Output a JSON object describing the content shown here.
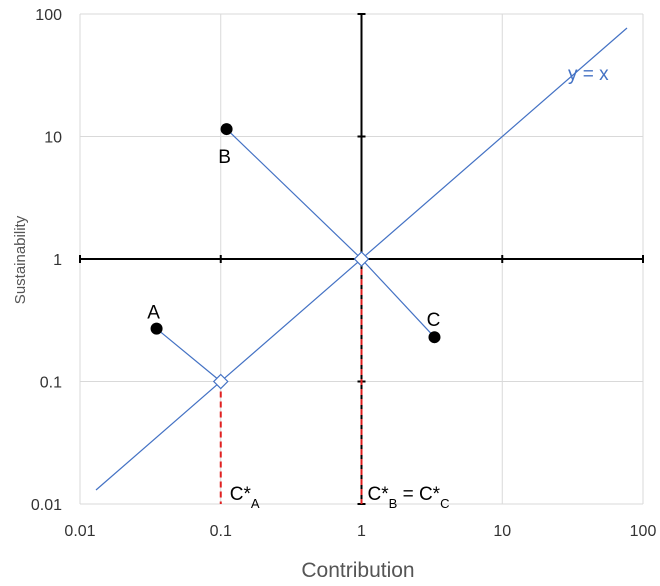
{
  "chart_data": {
    "type": "scatter",
    "xlabel": "Contribution",
    "ylabel": "Sustainability",
    "x_scale": "log",
    "y_scale": "log",
    "xlim": [
      0.01,
      100
    ],
    "ylim": [
      0.01,
      100
    ],
    "grid": true,
    "x_ticks": [
      "0.01",
      "0.1",
      "1",
      "10",
      "100"
    ],
    "y_ticks": [
      "0.01",
      "0.1",
      "1",
      "10",
      "100"
    ],
    "reference_line": {
      "label": "y = x",
      "from": [
        0.01,
        0.01
      ],
      "to": [
        100,
        100
      ]
    },
    "points": [
      {
        "label": "A",
        "x": 0.035,
        "y": 0.27,
        "projection": [
          0.1,
          0.1
        ]
      },
      {
        "label": "B",
        "x": 0.11,
        "y": 11.5,
        "projection": [
          1,
          1
        ]
      },
      {
        "label": "C",
        "x": 3.3,
        "y": 0.23,
        "projection": [
          1,
          1
        ]
      }
    ],
    "projection_markers": [
      {
        "x": 0.1,
        "y": 0.1
      },
      {
        "x": 1,
        "y": 1
      }
    ],
    "crosshair_axes": {
      "x": 1,
      "y": 1
    },
    "dashed_drops": [
      {
        "x": 0.1,
        "y": 0.1,
        "color": "#e02020"
      },
      {
        "x": 1,
        "y": 1,
        "color": "#e02020"
      }
    ],
    "annotations": [
      {
        "main": "C*",
        "sub": "A",
        "main2": "",
        "sub2": ""
      },
      {
        "main": "C*",
        "sub": "B",
        "main2": " = C*",
        "sub2": "C"
      }
    ],
    "colors": {
      "reference": "#4472c4",
      "drop": "#e02020",
      "points": "#000000",
      "grid": "#d9d9d9"
    }
  }
}
